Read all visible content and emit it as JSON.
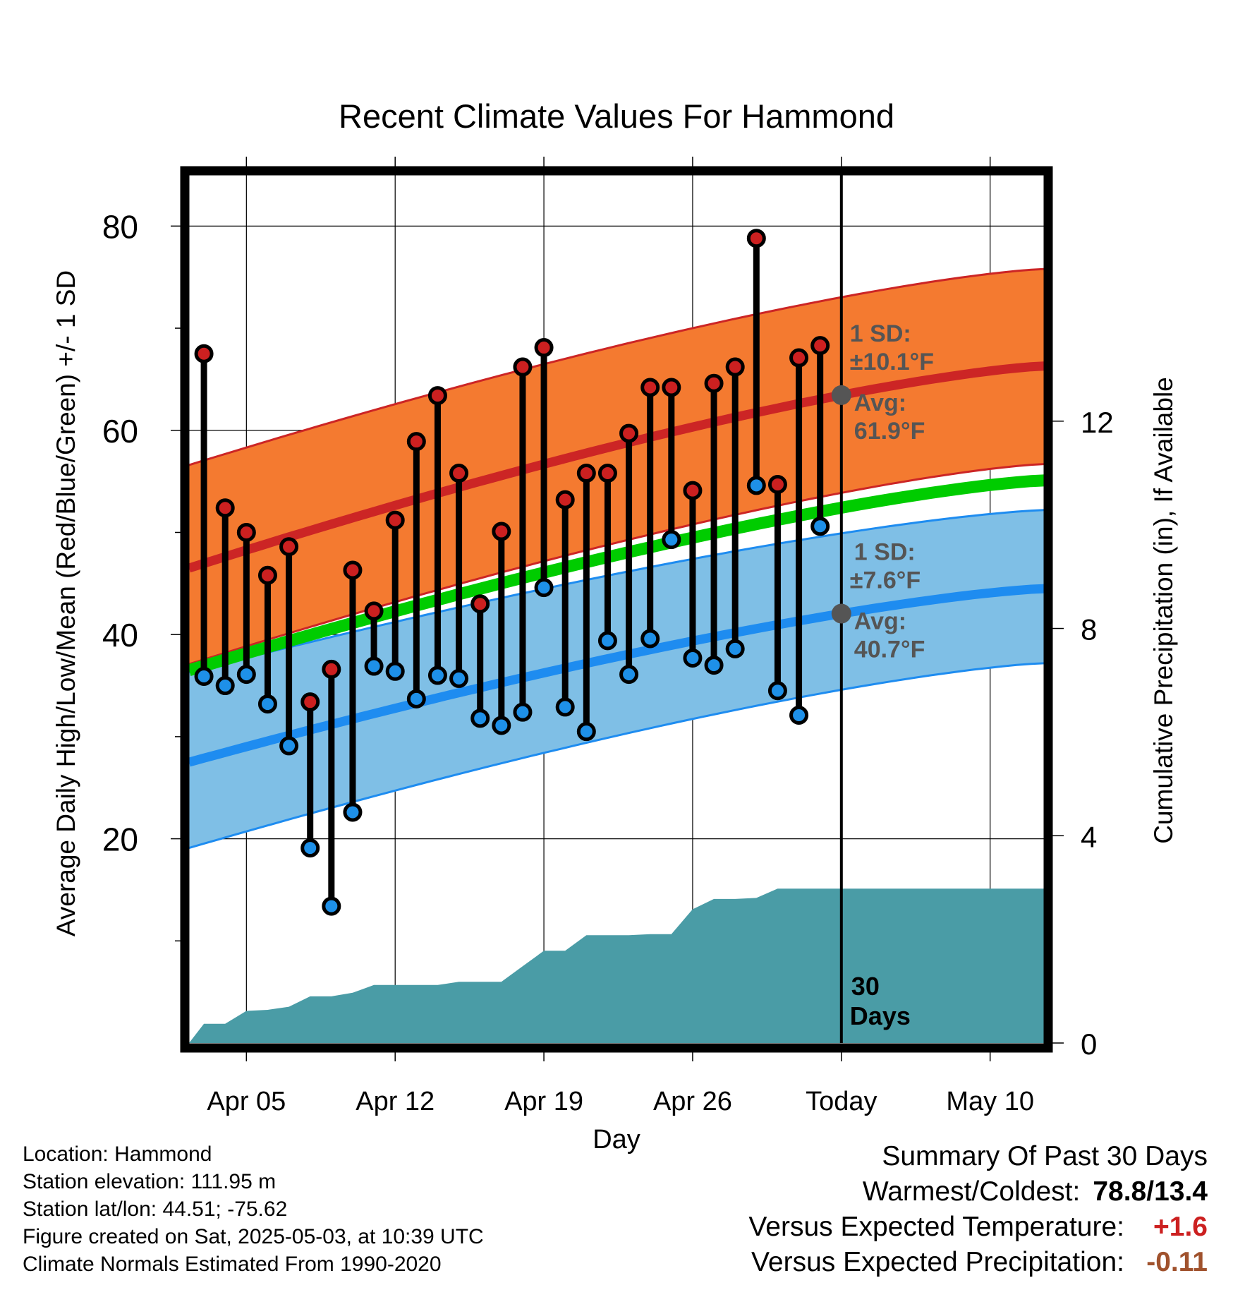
{
  "chart_data": {
    "type": "line",
    "title": "Recent Climate Values For Hammond",
    "xlabel": "Day",
    "ylabel": "Average Daily High/Low/Mean (Red/Blue/Green) +/- 1 SD",
    "ylabel_right": "Cumulative Precipitation (in), If Available",
    "x_ticks": [
      "Apr 05",
      "Apr 12",
      "Apr 19",
      "Apr 26",
      "Today",
      "May 10"
    ],
    "x_tick_days": [
      5,
      12,
      19,
      26,
      33,
      40
    ],
    "xlim": [
      2.3,
      42.6
    ],
    "ylim": [
      0,
      85
    ],
    "yticks": [
      20,
      40,
      60,
      80
    ],
    "ylim_right": [
      0,
      16.75
    ],
    "yticks_right": [
      0,
      4,
      8,
      12
    ],
    "today_day": 33,
    "days": [
      3,
      4,
      5,
      6,
      7,
      8,
      9,
      10,
      11,
      12,
      13,
      14,
      15,
      16,
      17,
      18,
      19,
      20,
      21,
      22,
      23,
      24,
      25,
      26,
      27,
      28,
      29,
      30,
      31,
      32
    ],
    "daily_high": [
      67.5,
      52.4,
      50.0,
      45.8,
      48.6,
      33.4,
      36.6,
      46.3,
      42.3,
      51.2,
      58.9,
      63.4,
      55.8,
      43.0,
      50.1,
      66.2,
      68.1,
      53.2,
      55.8,
      55.8,
      59.7,
      64.2,
      64.2,
      54.1,
      64.6,
      66.2,
      78.8,
      54.7,
      67.1,
      68.3
    ],
    "daily_low": [
      35.9,
      35.0,
      36.1,
      33.2,
      29.1,
      19.1,
      13.4,
      22.6,
      36.9,
      36.4,
      33.7,
      36.0,
      35.7,
      31.8,
      31.1,
      32.4,
      44.6,
      32.9,
      30.5,
      39.4,
      36.1,
      39.6,
      49.3,
      37.7,
      37.0,
      38.6,
      54.6,
      34.5,
      32.1,
      50.6
    ],
    "normal_high": {
      "day_start": 2.3,
      "day_end": 42.6,
      "start": 46.5,
      "end": 66.3
    },
    "normal_high_upper": {
      "start": 56.6,
      "end": 75.8
    },
    "normal_high_lower": {
      "start": 37.1,
      "end": 56.7
    },
    "normal_low": {
      "start": 27.5,
      "end": 44.5
    },
    "normal_low_upper": {
      "start": 36.3,
      "end": 52.2
    },
    "normal_low_lower": {
      "start": 19.1,
      "end": 37.2
    },
    "normal_mean": {
      "start": 36.5,
      "end": 55.1
    },
    "precip_days": [
      2.3,
      3,
      4,
      5,
      6,
      7,
      8,
      9,
      10,
      11,
      12,
      13,
      14,
      15,
      16,
      17,
      18,
      19,
      20,
      21,
      22,
      23,
      24,
      25,
      26,
      27,
      28,
      29,
      30,
      31,
      32,
      33,
      42.6
    ],
    "precip_cumulative": [
      0,
      0.37,
      0.37,
      0.62,
      0.64,
      0.7,
      0.9,
      0.9,
      0.97,
      1.12,
      1.12,
      1.12,
      1.12,
      1.18,
      1.18,
      1.18,
      1.48,
      1.78,
      1.78,
      2.08,
      2.08,
      2.08,
      2.1,
      2.1,
      2.58,
      2.78,
      2.78,
      2.8,
      2.98,
      2.98,
      2.98,
      2.98,
      2.98
    ],
    "annotations": {
      "high_sd_label": "1 SD:",
      "high_sd_value": "±10.1°F",
      "high_avg_label": "Avg:",
      "high_avg_value": "61.9°F",
      "low_sd_label": "1 SD:",
      "low_sd_value": "±7.6°F",
      "low_avg_label": "Avg:",
      "low_avg_value": "40.7°F",
      "days_label_1": "30",
      "days_label_2": "Days"
    },
    "colors": {
      "high_band": "#f47a30",
      "high_line": "#cc2525",
      "low_band": "#7fbfe6",
      "low_line": "#1e8cf0",
      "mean_line": "#00cc00",
      "precip": "#4a9ca6",
      "high_dot": "#cc2020",
      "low_dot": "#1e90e8",
      "annotation_text": "#555555"
    },
    "legend": "none",
    "grid": true
  },
  "info": {
    "location": "Location: Hammond",
    "elevation": "Station elevation: 111.95 m",
    "latlon": "Station lat/lon: 44.51; -75.62",
    "created": "Figure created on Sat, 2025-05-03, at 10:39 UTC",
    "normals": "Climate Normals Estimated From 1990-2020"
  },
  "summary": {
    "title": "Summary Of Past 30 Days",
    "warm_cold_label": "Warmest/Coldest:",
    "warm_cold_value": "78.8/13.4",
    "temp_label": "Versus Expected Temperature:",
    "temp_value": "+1.6",
    "temp_color": "#cc2020",
    "precip_label": "Versus Expected Precipitation:",
    "precip_value": "-0.11",
    "precip_color": "#a0522d"
  }
}
